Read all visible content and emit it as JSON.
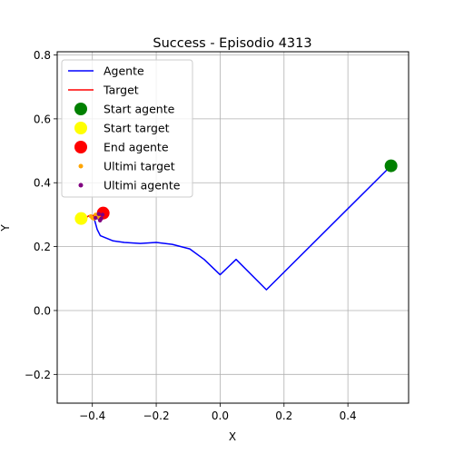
{
  "chart_data": {
    "type": "line",
    "title": "Success - Episodio 4313",
    "xlabel": "X",
    "ylabel": "Y",
    "xlim": [
      -0.51,
      0.59
    ],
    "ylim": [
      -0.29,
      0.81
    ],
    "xticks": [
      -0.4,
      -0.2,
      0.0,
      0.2,
      0.4
    ],
    "xtick_labels": [
      "−0.4",
      "−0.2",
      "0.0",
      "0.2",
      "0.4"
    ],
    "yticks": [
      -0.2,
      0.0,
      0.2,
      0.4,
      0.6,
      0.8
    ],
    "ytick_labels": [
      "−0.2",
      "0.0",
      "0.2",
      "0.4",
      "0.6",
      "0.8"
    ],
    "grid": true,
    "legend_position": "top-left",
    "series": [
      {
        "name": "Agente",
        "kind": "line",
        "color": "#0000ff",
        "points": [
          [
            0.535,
            0.453
          ],
          [
            0.145,
            0.065
          ],
          [
            0.05,
            0.16
          ],
          [
            0.0,
            0.112
          ],
          [
            -0.05,
            0.16
          ],
          [
            -0.095,
            0.193
          ],
          [
            -0.15,
            0.207
          ],
          [
            -0.2,
            0.213
          ],
          [
            -0.25,
            0.21
          ],
          [
            -0.3,
            0.213
          ],
          [
            -0.335,
            0.218
          ],
          [
            -0.375,
            0.234
          ],
          [
            -0.385,
            0.254
          ],
          [
            -0.392,
            0.28
          ],
          [
            -0.398,
            0.292
          ],
          [
            -0.405,
            0.298
          ],
          [
            -0.39,
            0.29
          ],
          [
            -0.375,
            0.284
          ],
          [
            -0.368,
            0.3
          ],
          [
            -0.372,
            0.288
          ],
          [
            -0.38,
            0.302
          ],
          [
            -0.366,
            0.305
          ]
        ]
      },
      {
        "name": "Target",
        "kind": "line",
        "color": "#ff0000",
        "points": [
          [
            -0.43,
            0.29
          ],
          [
            -0.445,
            0.302
          ],
          [
            -0.435,
            0.296
          ],
          [
            -0.425,
            0.3
          ],
          [
            -0.418,
            0.292
          ],
          [
            -0.41,
            0.297
          ],
          [
            -0.4,
            0.29
          ],
          [
            -0.39,
            0.3
          ],
          [
            -0.405,
            0.295
          ],
          [
            -0.395,
            0.288
          ],
          [
            -0.385,
            0.295
          ],
          [
            -0.378,
            0.29
          ]
        ]
      },
      {
        "name": "Start agente",
        "kind": "scatter",
        "color": "#008000",
        "size": "large",
        "points": [
          [
            0.535,
            0.453
          ]
        ]
      },
      {
        "name": "Start target",
        "kind": "scatter",
        "color": "#ffff00",
        "size": "large",
        "points": [
          [
            -0.435,
            0.288
          ]
        ]
      },
      {
        "name": "End agente",
        "kind": "scatter",
        "color": "#ff0000",
        "size": "large",
        "points": [
          [
            -0.366,
            0.305
          ]
        ]
      },
      {
        "name": "Ultimi target",
        "kind": "scatter",
        "color": "#ffa500",
        "size": "small",
        "points": [
          [
            -0.4,
            0.29
          ],
          [
            -0.39,
            0.3
          ],
          [
            -0.405,
            0.295
          ],
          [
            -0.395,
            0.288
          ],
          [
            -0.385,
            0.295
          ],
          [
            -0.378,
            0.29
          ]
        ]
      },
      {
        "name": "Ultimi agente",
        "kind": "scatter",
        "color": "#800080",
        "size": "small",
        "points": [
          [
            -0.39,
            0.29
          ],
          [
            -0.375,
            0.284
          ],
          [
            -0.368,
            0.3
          ],
          [
            -0.372,
            0.288
          ],
          [
            -0.38,
            0.302
          ],
          [
            -0.376,
            0.282
          ]
        ]
      }
    ]
  }
}
